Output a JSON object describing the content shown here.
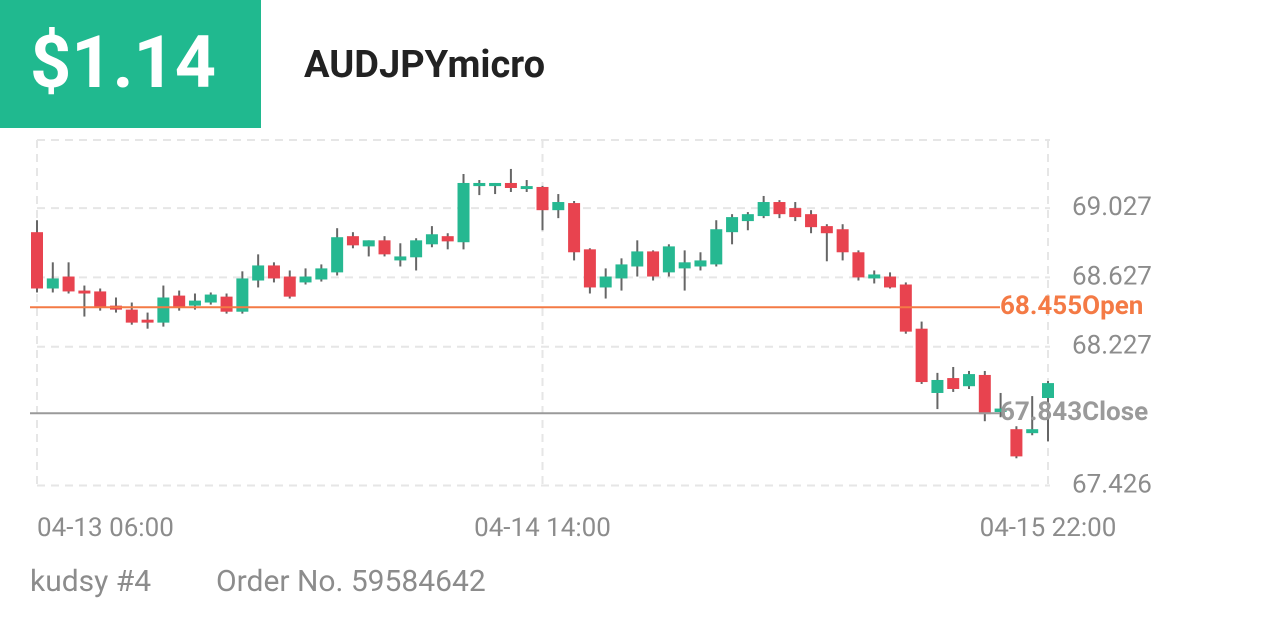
{
  "header": {
    "profit": "$1.14",
    "symbol": "AUDJPYmicro"
  },
  "chart_data": {
    "type": "candlestick",
    "categories": [
      "04-13 06:00",
      null,
      null,
      null,
      null,
      null,
      null,
      null,
      null,
      null,
      null,
      null,
      null,
      null,
      null,
      null,
      null,
      null,
      null,
      null,
      null,
      null,
      null,
      null,
      null,
      null,
      null,
      null,
      null,
      null,
      null,
      null,
      "04-14 14:00",
      null,
      null,
      null,
      null,
      null,
      null,
      null,
      null,
      null,
      null,
      null,
      null,
      null,
      null,
      null,
      null,
      null,
      null,
      null,
      null,
      null,
      null,
      null,
      null,
      null,
      null,
      null,
      null,
      null,
      null,
      null,
      "04-15 22:00"
    ],
    "open": [
      68.888,
      68.563,
      68.632,
      68.551,
      68.546,
      68.464,
      68.441,
      68.383,
      68.366,
      68.522,
      68.464,
      68.482,
      68.516,
      68.429,
      68.609,
      68.696,
      68.632,
      68.598,
      68.615,
      68.656,
      68.865,
      68.806,
      68.841,
      68.725,
      68.743,
      68.818,
      68.865,
      68.83,
      69.154,
      69.154,
      69.172,
      69.137,
      69.149,
      69.015,
      69.056,
      68.789,
      68.569,
      68.621,
      68.69,
      68.777,
      68.656,
      68.679,
      68.69,
      68.702,
      68.888,
      68.952,
      68.981,
      69.062,
      69.027,
      68.992,
      68.923,
      68.905,
      68.772,
      68.621,
      68.632,
      68.586,
      68.331,
      67.96,
      68.046,
      67.999,
      68.064,
      67.85,
      67.751,
      67.728,
      67.931
    ],
    "high": [
      68.957,
      68.714,
      68.714,
      68.58,
      68.563,
      68.511,
      68.482,
      68.424,
      68.58,
      68.551,
      68.534,
      68.54,
      68.534,
      68.662,
      68.76,
      68.714,
      68.667,
      68.679,
      68.702,
      68.911,
      68.888,
      68.841,
      68.865,
      68.824,
      68.853,
      68.923,
      68.882,
      69.224,
      69.189,
      69.172,
      69.253,
      69.189,
      69.155,
      69.108,
      69.068,
      68.795,
      68.679,
      68.737,
      68.841,
      68.783,
      68.818,
      68.783,
      68.772,
      68.957,
      68.992,
      69.004,
      69.097,
      69.073,
      69.062,
      69.015,
      68.934,
      68.934,
      68.783,
      68.667,
      68.656,
      68.598,
      68.372,
      68.076,
      68.11,
      68.087,
      68.087,
      67.96,
      67.768,
      67.942,
      68.029
    ],
    "low": [
      68.54,
      68.54,
      68.534,
      68.401,
      68.435,
      68.424,
      68.354,
      68.331,
      68.343,
      68.435,
      68.441,
      68.47,
      68.418,
      68.418,
      68.569,
      68.598,
      68.505,
      68.586,
      68.603,
      68.638,
      68.795,
      68.748,
      68.748,
      68.69,
      68.667,
      68.801,
      68.789,
      68.789,
      69.102,
      69.108,
      69.12,
      69.12,
      68.899,
      68.969,
      68.725,
      68.534,
      68.505,
      68.551,
      68.632,
      68.609,
      68.632,
      68.551,
      68.667,
      68.69,
      68.818,
      68.899,
      68.969,
      68.969,
      68.952,
      68.882,
      68.72,
      68.725,
      68.609,
      68.592,
      68.563,
      68.302,
      68.012,
      67.867,
      67.966,
      67.983,
      67.797,
      67.82,
      67.583,
      67.716,
      67.681
    ],
    "close": [
      68.563,
      68.621,
      68.546,
      68.534,
      68.453,
      68.441,
      68.366,
      68.366,
      68.511,
      68.453,
      68.493,
      68.528,
      68.429,
      68.621,
      68.696,
      68.621,
      68.516,
      68.632,
      68.679,
      68.859,
      68.812,
      68.841,
      68.76,
      68.748,
      68.841,
      68.876,
      68.835,
      69.172,
      69.172,
      69.172,
      69.143,
      69.154,
      69.015,
      69.062,
      68.772,
      68.569,
      68.632,
      68.702,
      68.777,
      68.632,
      68.806,
      68.714,
      68.725,
      68.905,
      68.975,
      68.992,
      69.062,
      68.992,
      68.975,
      68.917,
      68.882,
      68.772,
      68.627,
      68.644,
      68.569,
      68.314,
      68.023,
      68.035,
      67.983,
      68.069,
      67.838,
      67.87,
      67.594,
      67.751,
      68.017
    ],
    "up_color": "#26b891",
    "down_color": "#e8434f",
    "ylim": [
      67.4,
      69.42
    ],
    "yticks": [
      67.426,
      68.227,
      68.627,
      69.027
    ],
    "grid": true,
    "reference_lines": [
      {
        "value": 68.455,
        "label": "Open",
        "color": "#f47a45"
      },
      {
        "value": 67.843,
        "label": "Close",
        "color": "#9a9a9a"
      }
    ]
  },
  "footer": {
    "account": "kudsy #4",
    "order": "Order No. 59584642"
  }
}
